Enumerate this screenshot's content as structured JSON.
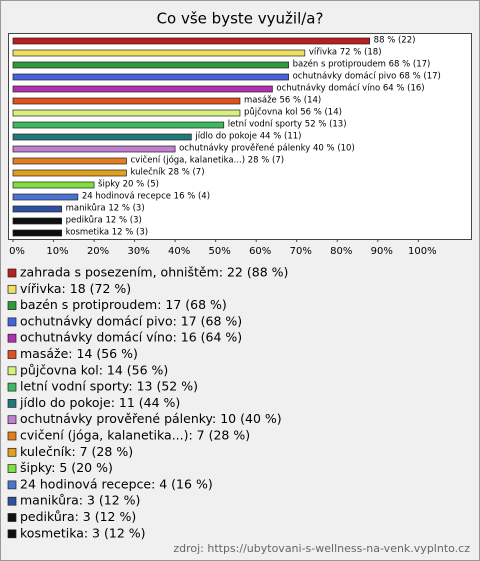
{
  "chart_data": {
    "type": "barh",
    "title": "Co vše byste využil/a?",
    "categories": [
      "zahrada s posezením, ohništěm",
      "vířivka",
      "bazén s protiproudem",
      "ochutnávky domácí pivo",
      "ochutnávky domácí víno",
      "masáže",
      "půjčovna kol",
      "letní vodní sporty",
      "jídlo do pokoje",
      "ochutnávky prověřené pálenky",
      "cvičení (jóga, kalanetika...)",
      "kulečník",
      "šipky",
      "24 hodinová recepce",
      "manikůra",
      "pedikůra",
      "kosmetika"
    ],
    "values": [
      88,
      72,
      68,
      68,
      64,
      56,
      56,
      52,
      44,
      40,
      28,
      28,
      20,
      16,
      12,
      12,
      12
    ],
    "value_labels": [
      "88 % (22)",
      "vířivka 72 % (18)",
      "bazén s protiproudem 68 % (17)",
      "ochutnávky domácí pivo 68 % (17)",
      "ochutnávky domácí víno 64 % (16)",
      "masáže 56 % (14)",
      "půjčovna kol 56 % (14)",
      "letní vodní sporty 52 % (13)",
      "jídlo do pokoje 44 % (11)",
      "ochutnávky prověřené pálenky 40 % (10)",
      "cvičení (jóga, kalanetika...) 28 % (7)",
      "kulečník 28 % (7)",
      "šipky 20 % (5)",
      "24 hodinová recepce 16 % (4)",
      "manikůra 12 % (3)",
      "pedikůra 12 % (3)",
      "kosmetika 12 % (3)"
    ],
    "legend": [
      "zahrada s posezením, ohništěm: 22 (88 %)",
      "vířivka: 18 (72 %)",
      "bazén s protiproudem: 17 (68 %)",
      "ochutnávky domácí pivo: 17 (68 %)",
      "ochutnávky domácí víno: 16 (64 %)",
      "masáže: 14 (56 %)",
      "půjčovna kol: 14 (56 %)",
      "letní vodní sporty: 13 (52 %)",
      "jídlo do pokoje: 11 (44 %)",
      "ochutnávky prověřené pálenky: 10 (40 %)",
      "cvičení (jóga, kalanetika...): 7 (28 %)",
      "kulečník: 7 (28 %)",
      "šipky: 5 (20 %)",
      "24 hodinová recepce: 4 (16 %)",
      "manikůra: 3 (12 %)",
      "pedikůra: 3 (12 %)",
      "kosmetika: 3 (12 %)"
    ],
    "colors": [
      "#b82020",
      "#f0e060",
      "#2e9a3c",
      "#4464d8",
      "#b030b0",
      "#e05020",
      "#d8f080",
      "#40b860",
      "#207878",
      "#c080d0",
      "#e08020",
      "#e0a020",
      "#80e040",
      "#4a74d0",
      "#3050a0",
      "#101010",
      "#101010"
    ],
    "xlim": [
      0,
      113
    ],
    "xticks": [
      {
        "value": 0,
        "label": "0%"
      },
      {
        "value": 10,
        "label": "10%"
      },
      {
        "value": 20,
        "label": "20%"
      },
      {
        "value": 30,
        "label": "30%"
      },
      {
        "value": 40,
        "label": "40%"
      },
      {
        "value": 50,
        "label": "50%"
      },
      {
        "value": 60,
        "label": "60%"
      },
      {
        "value": 70,
        "label": "70%"
      },
      {
        "value": 80,
        "label": "80%"
      },
      {
        "value": 90,
        "label": "90%"
      },
      {
        "value": 100,
        "label": "100%"
      }
    ],
    "source": "zdroj: https://ubytovani-s-wellness-na-venk.vyplnto.cz"
  }
}
